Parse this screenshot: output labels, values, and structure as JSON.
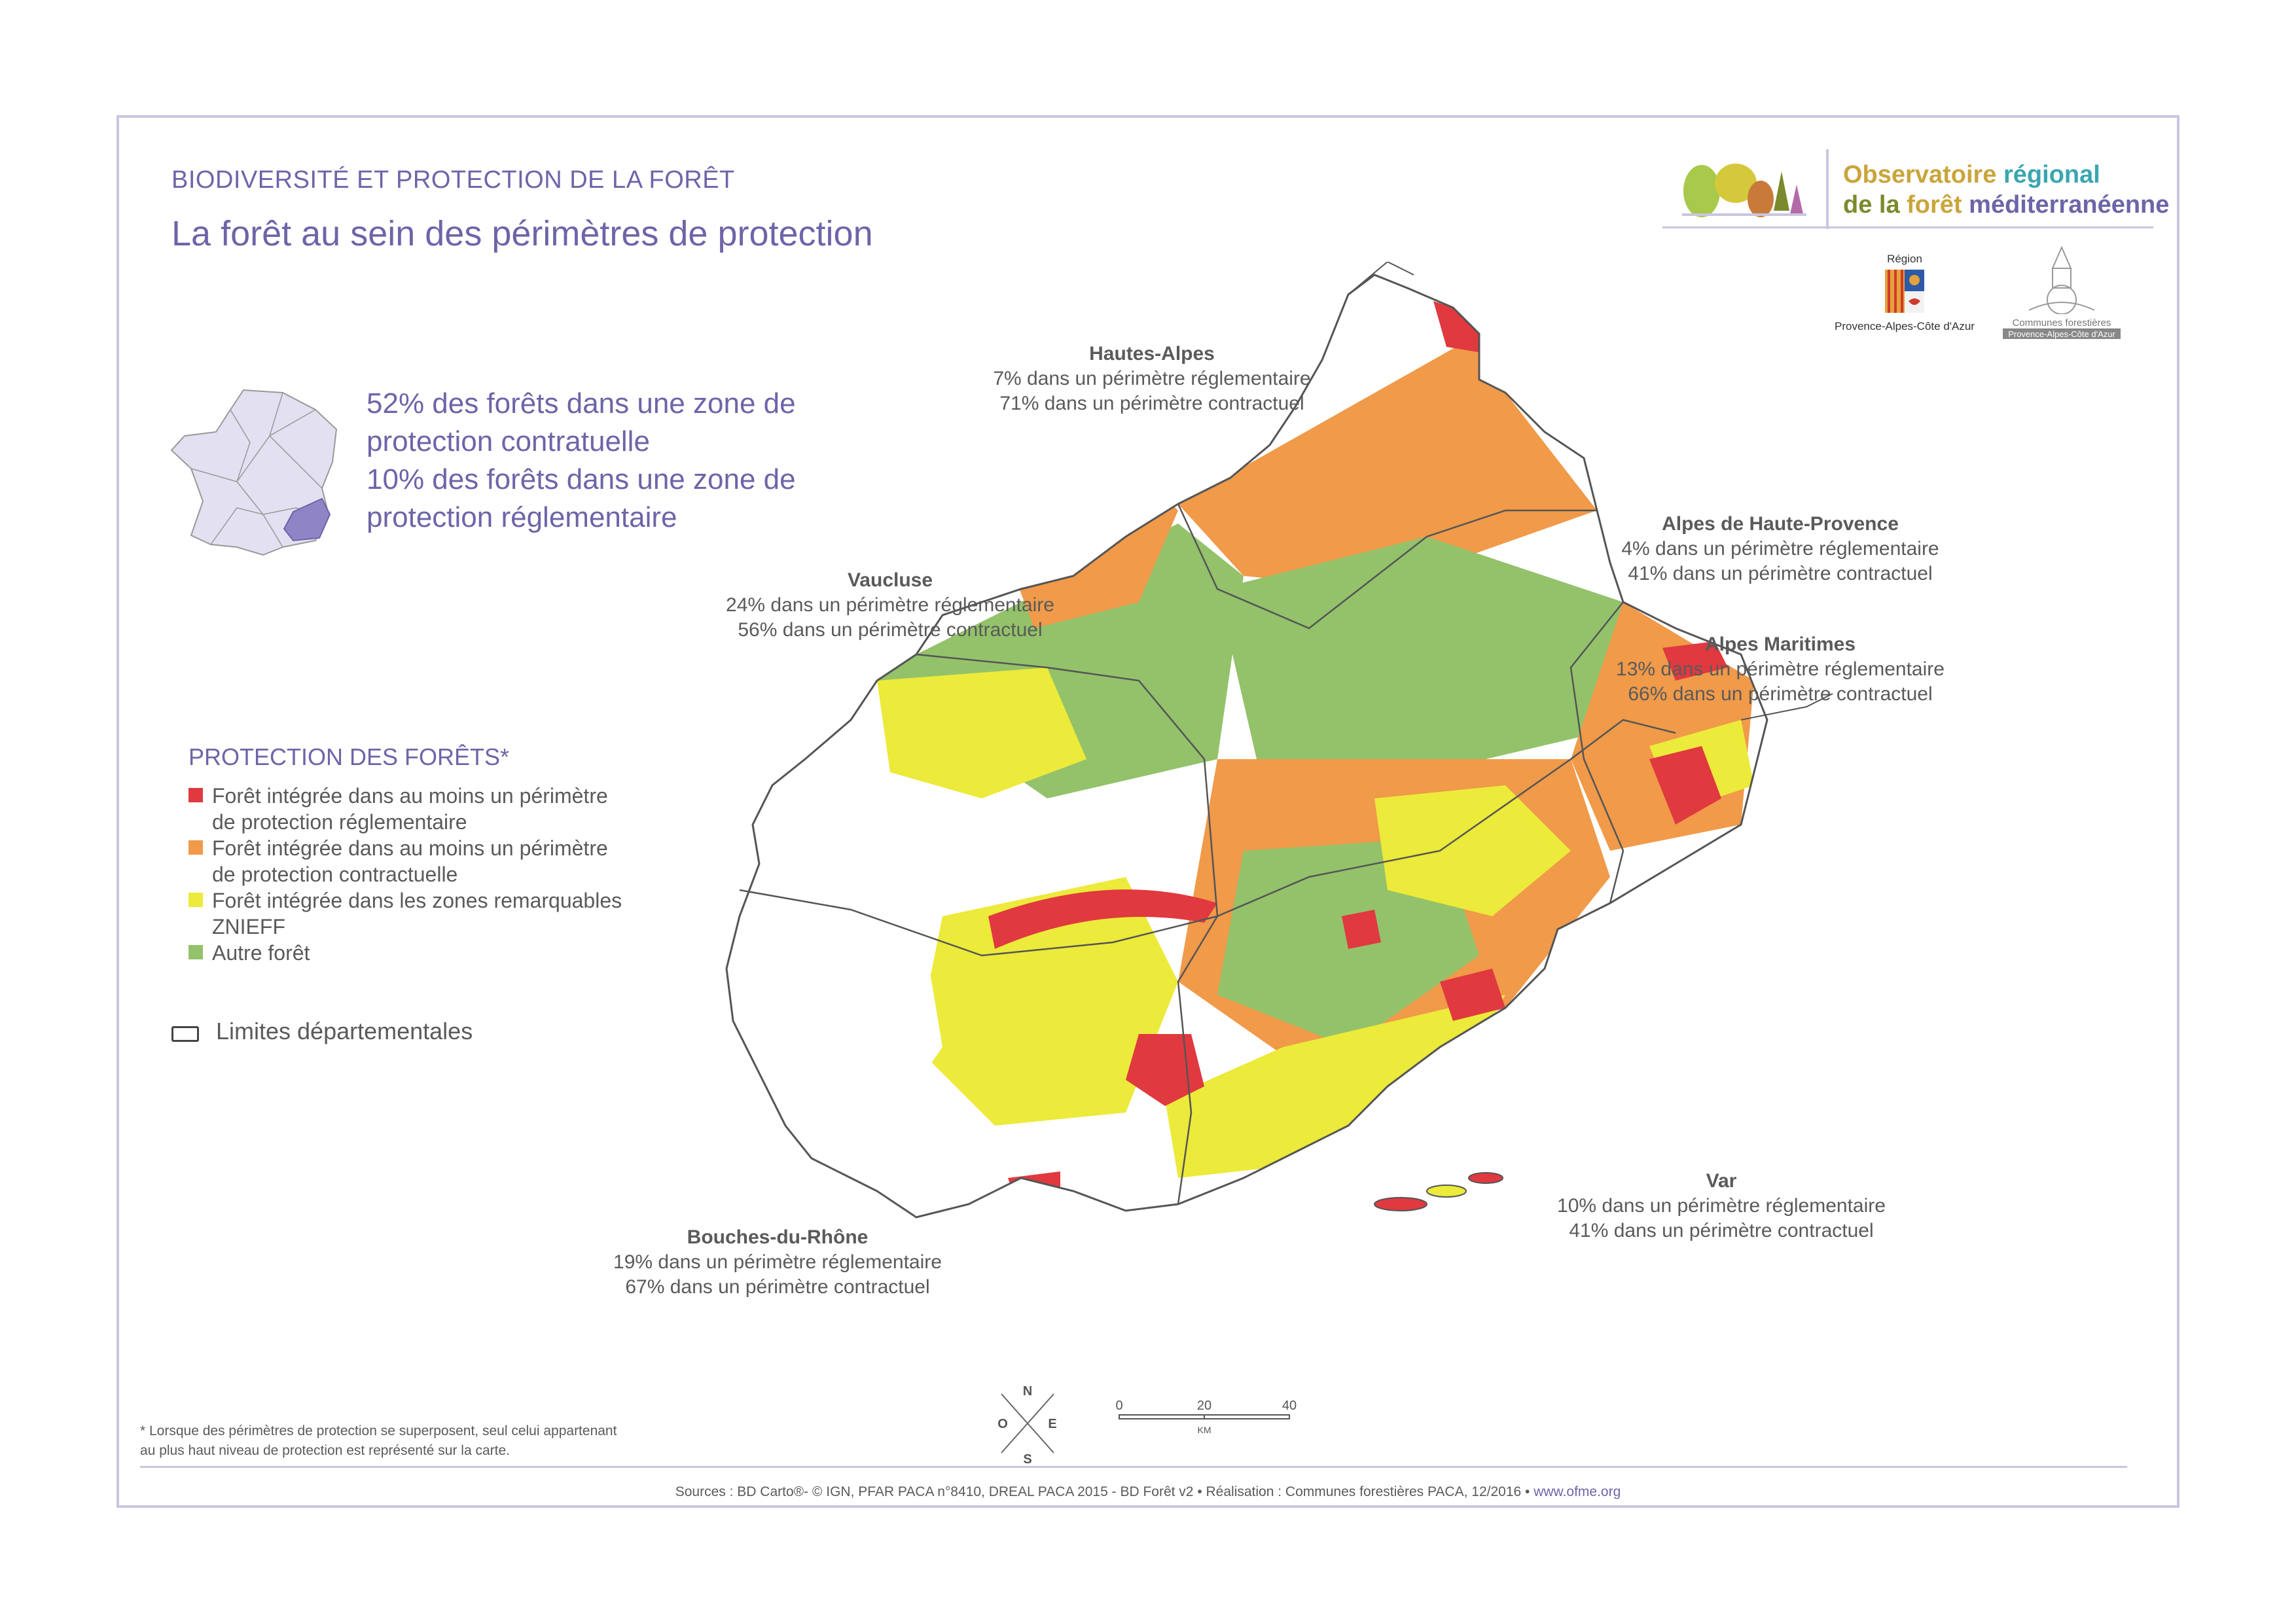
{
  "header": {
    "kicker": "BIODIVERSITÉ ET PROTECTION DE LA FORÊT",
    "title": "La forêt au sein des périmètres de protection"
  },
  "branding": {
    "observatory_line1_a": "Observatoire ",
    "observatory_line1_b": "régional",
    "observatory_line2_a": "de la ",
    "observatory_line2_b": "forêt",
    "observatory_line2_c": " méditerranéenne",
    "region_top": "Région",
    "region_bottom": "Provence-Alpes-Côte d'Azur",
    "communes_top": "Communes forestières",
    "communes_bottom": "Provence-Alpes-Côte d'Azur",
    "colors": {
      "gold": "#c9a53c",
      "teal": "#3aa6b0",
      "olive": "#7b8a2c",
      "purple": "#6d65a8"
    }
  },
  "summary": {
    "line1": "52% des forêts dans une zone de",
    "line2": "protection contratuelle",
    "line3": "10%  des forêts dans une zone de",
    "line4": "protection réglementaire"
  },
  "legend": {
    "title": "PROTECTION DES FORÊTS*",
    "items": [
      {
        "line1": "Forêt intégrée dans au moins un périmètre",
        "line2": "de protection réglementaire",
        "color": "#e0393f"
      },
      {
        "line1": "Forêt intégrée dans au moins un périmètre",
        "line2": "de protection contractuelle",
        "color": "#f09a4a"
      },
      {
        "line1": "Forêt intégrée dans les zones remarquables",
        "line2": "ZNIEFF",
        "color": "#ecea3a"
      },
      {
        "line1": "Autre forêt",
        "line2": "",
        "color": "#93c26a"
      }
    ],
    "boundary_label": "Limites départementales"
  },
  "departments": {
    "hautes_alpes": {
      "name": "Hautes-Alpes",
      "l1": "7% dans un périmètre réglementaire",
      "l2": "71% dans un périmètre contractuel"
    },
    "vaucluse": {
      "name": "Vaucluse",
      "l1": "24% dans un périmètre réglementaire",
      "l2": "56% dans un périmètre contractuel"
    },
    "ahp": {
      "name": "Alpes de Haute-Provence",
      "l1": "4% dans un périmètre réglementaire",
      "l2": "41% dans un périmètre contractuel"
    },
    "am": {
      "name": "Alpes Maritimes",
      "l1": "13% dans un périmètre réglementaire",
      "l2": "66% dans un périmètre contractuel"
    },
    "var": {
      "name": "Var",
      "l1": "10% dans un périmètre réglementaire",
      "l2": "41% dans un périmètre contractuel"
    },
    "bdr": {
      "name": "Bouches-du-Rhône",
      "l1": "19% dans un périmètre réglementaire",
      "l2": "67% dans un périmètre contractuel"
    }
  },
  "compass": {
    "n": "N",
    "s": "S",
    "e": "E",
    "w": "O"
  },
  "scale": {
    "t0": "0",
    "t1": "20",
    "t2": "40",
    "unit": "KM"
  },
  "footnote": {
    "line1": "* Lorsque des périmètres de protection se superposent, seul celui appartenant",
    "line2": "au plus haut niveau de protection est représenté sur la carte."
  },
  "sources": {
    "text": "Sources : BD Carto®- © IGN, PFAR PACA n°8410,  DREAL PACA 2015 - BD Forêt v2 • Réalisation : Communes forestières PACA, 12/2016 • ",
    "link": "www.ofme.org"
  }
}
